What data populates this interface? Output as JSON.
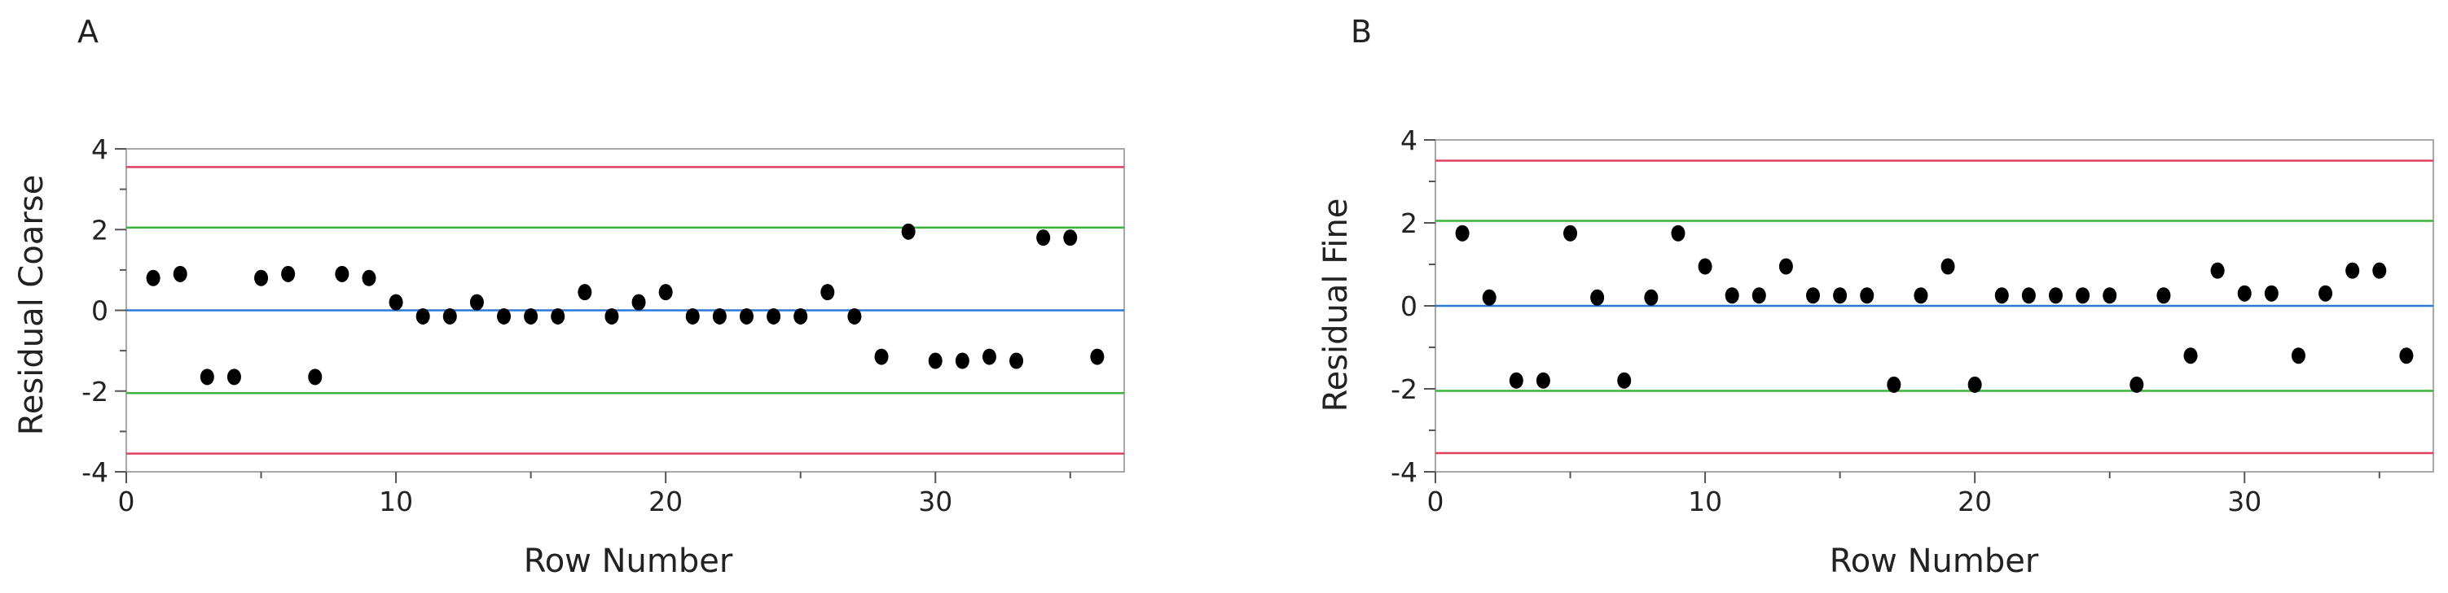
{
  "chart_data": [
    {
      "panel": "A",
      "type": "scatter",
      "xlabel": "Row Number",
      "ylabel": "Residual Coarse",
      "xlim": [
        0,
        37
      ],
      "ylim": [
        -4,
        4
      ],
      "xticks": [
        0,
        10,
        20,
        30
      ],
      "yticks": [
        4,
        2,
        0,
        -2,
        -4
      ],
      "reference_lines": [
        {
          "y": 3.55,
          "color": "#e04060"
        },
        {
          "y": 2.05,
          "color": "#3cb43c"
        },
        {
          "y": 0,
          "color": "#2a78d8"
        },
        {
          "y": -2.05,
          "color": "#3cb43c"
        },
        {
          "y": -3.55,
          "color": "#e04060"
        }
      ],
      "points": [
        {
          "x": 1,
          "y": 0.8
        },
        {
          "x": 2,
          "y": 0.9
        },
        {
          "x": 3,
          "y": -1.65
        },
        {
          "x": 4,
          "y": -1.65
        },
        {
          "x": 5,
          "y": 0.8
        },
        {
          "x": 6,
          "y": 0.9
        },
        {
          "x": 7,
          "y": -1.65
        },
        {
          "x": 8,
          "y": 0.9
        },
        {
          "x": 9,
          "y": 0.8
        },
        {
          "x": 10,
          "y": 0.2
        },
        {
          "x": 11,
          "y": -0.15
        },
        {
          "x": 12,
          "y": -0.15
        },
        {
          "x": 13,
          "y": 0.2
        },
        {
          "x": 14,
          "y": -0.15
        },
        {
          "x": 15,
          "y": -0.15
        },
        {
          "x": 16,
          "y": -0.15
        },
        {
          "x": 17,
          "y": 0.45
        },
        {
          "x": 18,
          "y": -0.15
        },
        {
          "x": 19,
          "y": 0.2
        },
        {
          "x": 20,
          "y": 0.45
        },
        {
          "x": 21,
          "y": -0.15
        },
        {
          "x": 22,
          "y": -0.15
        },
        {
          "x": 23,
          "y": -0.15
        },
        {
          "x": 24,
          "y": -0.15
        },
        {
          "x": 25,
          "y": -0.15
        },
        {
          "x": 26,
          "y": 0.45
        },
        {
          "x": 27,
          "y": -0.15
        },
        {
          "x": 28,
          "y": -1.15
        },
        {
          "x": 29,
          "y": 1.95
        },
        {
          "x": 30,
          "y": -1.25
        },
        {
          "x": 31,
          "y": -1.25
        },
        {
          "x": 32,
          "y": -1.15
        },
        {
          "x": 33,
          "y": -1.25
        },
        {
          "x": 34,
          "y": 1.8
        },
        {
          "x": 35,
          "y": 1.8
        },
        {
          "x": 36,
          "y": -1.15
        }
      ]
    },
    {
      "panel": "B",
      "type": "scatter",
      "xlabel": "Row Number",
      "ylabel": "Residual Fine",
      "xlim": [
        0,
        37
      ],
      "ylim": [
        -4,
        4
      ],
      "xticks": [
        0,
        10,
        20,
        30
      ],
      "yticks": [
        4,
        2,
        0,
        -2,
        -4
      ],
      "reference_lines": [
        {
          "y": 3.5,
          "color": "#e04060"
        },
        {
          "y": 2.05,
          "color": "#3cb43c"
        },
        {
          "y": 0,
          "color": "#2a78d8"
        },
        {
          "y": -2.05,
          "color": "#3cb43c"
        },
        {
          "y": -3.55,
          "color": "#e04060"
        }
      ],
      "points": [
        {
          "x": 1,
          "y": 1.75
        },
        {
          "x": 2,
          "y": 0.2
        },
        {
          "x": 3,
          "y": -1.8
        },
        {
          "x": 4,
          "y": -1.8
        },
        {
          "x": 5,
          "y": 1.75
        },
        {
          "x": 6,
          "y": 0.2
        },
        {
          "x": 7,
          "y": -1.8
        },
        {
          "x": 8,
          "y": 0.2
        },
        {
          "x": 9,
          "y": 1.75
        },
        {
          "x": 10,
          "y": 0.95
        },
        {
          "x": 11,
          "y": 0.25
        },
        {
          "x": 12,
          "y": 0.25
        },
        {
          "x": 13,
          "y": 0.95
        },
        {
          "x": 14,
          "y": 0.25
        },
        {
          "x": 15,
          "y": 0.25
        },
        {
          "x": 16,
          "y": 0.25
        },
        {
          "x": 17,
          "y": -1.9
        },
        {
          "x": 18,
          "y": 0.25
        },
        {
          "x": 19,
          "y": 0.95
        },
        {
          "x": 20,
          "y": -1.9
        },
        {
          "x": 21,
          "y": 0.25
        },
        {
          "x": 22,
          "y": 0.25
        },
        {
          "x": 23,
          "y": 0.25
        },
        {
          "x": 24,
          "y": 0.25
        },
        {
          "x": 25,
          "y": 0.25
        },
        {
          "x": 26,
          "y": -1.9
        },
        {
          "x": 27,
          "y": 0.25
        },
        {
          "x": 28,
          "y": -1.2
        },
        {
          "x": 29,
          "y": 0.85
        },
        {
          "x": 30,
          "y": 0.3
        },
        {
          "x": 31,
          "y": 0.3
        },
        {
          "x": 32,
          "y": -1.2
        },
        {
          "x": 33,
          "y": 0.3
        },
        {
          "x": 34,
          "y": 0.85
        },
        {
          "x": 35,
          "y": 0.85
        },
        {
          "x": 36,
          "y": -1.2
        }
      ]
    }
  ]
}
